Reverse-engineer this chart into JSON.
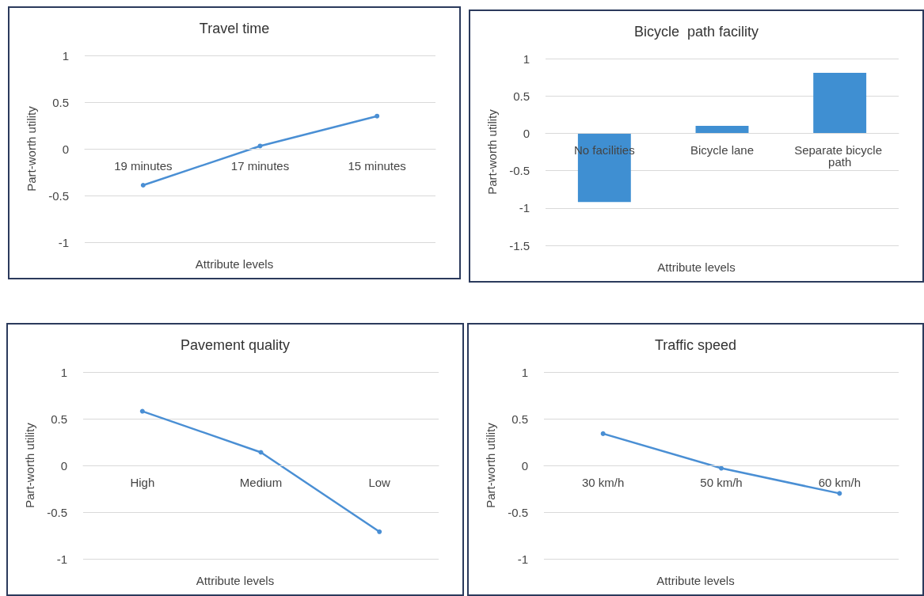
{
  "chart_data": [
    {
      "type": "line",
      "title": "Travel time",
      "xlabel": "Attribute levels",
      "ylabel": "Part-worth utility",
      "categories": [
        "19 minutes",
        "17 minutes",
        "15 minutes"
      ],
      "series": [
        {
          "color": "#4a8fd4",
          "values": [
            -0.39,
            0.03,
            0.35
          ]
        }
      ],
      "ylim": [
        -1,
        1
      ],
      "yticks": [
        -1,
        -0.5,
        0,
        0.5,
        1
      ],
      "grid": "y",
      "marker": "circle"
    },
    {
      "type": "bar",
      "title": "Bicycle  path facility",
      "xlabel": "Attribute levels",
      "ylabel": "Part-worth utility",
      "categories": [
        "No facilities",
        "Bicycle lane",
        "Separate bicycle path"
      ],
      "series": [
        {
          "color": "#3f8fd2",
          "values": [
            -0.92,
            0.1,
            0.81
          ]
        }
      ],
      "ylim": [
        -1.5,
        1
      ],
      "yticks": [
        -1.5,
        -1,
        -0.5,
        0,
        0.5,
        1
      ],
      "grid": "y"
    },
    {
      "type": "line",
      "title": "Pavement quality",
      "xlabel": "Attribute levels",
      "ylabel": "Part-worth utility",
      "categories": [
        "High",
        "Medium",
        "Low"
      ],
      "series": [
        {
          "color": "#4a8fd4",
          "values": [
            0.58,
            0.14,
            -0.71
          ]
        }
      ],
      "ylim": [
        -1,
        1
      ],
      "yticks": [
        -1,
        -0.5,
        0,
        0.5,
        1
      ],
      "grid": "y",
      "marker": "circle"
    },
    {
      "type": "line",
      "title": "Traffic speed",
      "xlabel": "Attribute levels",
      "ylabel": "Part-worth utility",
      "categories": [
        "30 km/h",
        "50 km/h",
        "60 km/h"
      ],
      "series": [
        {
          "color": "#4a8fd4",
          "values": [
            0.34,
            -0.03,
            -0.3
          ]
        }
      ],
      "ylim": [
        -1,
        1
      ],
      "yticks": [
        -1,
        -0.5,
        0,
        0.5,
        1
      ],
      "grid": "y",
      "marker": "circle"
    }
  ]
}
